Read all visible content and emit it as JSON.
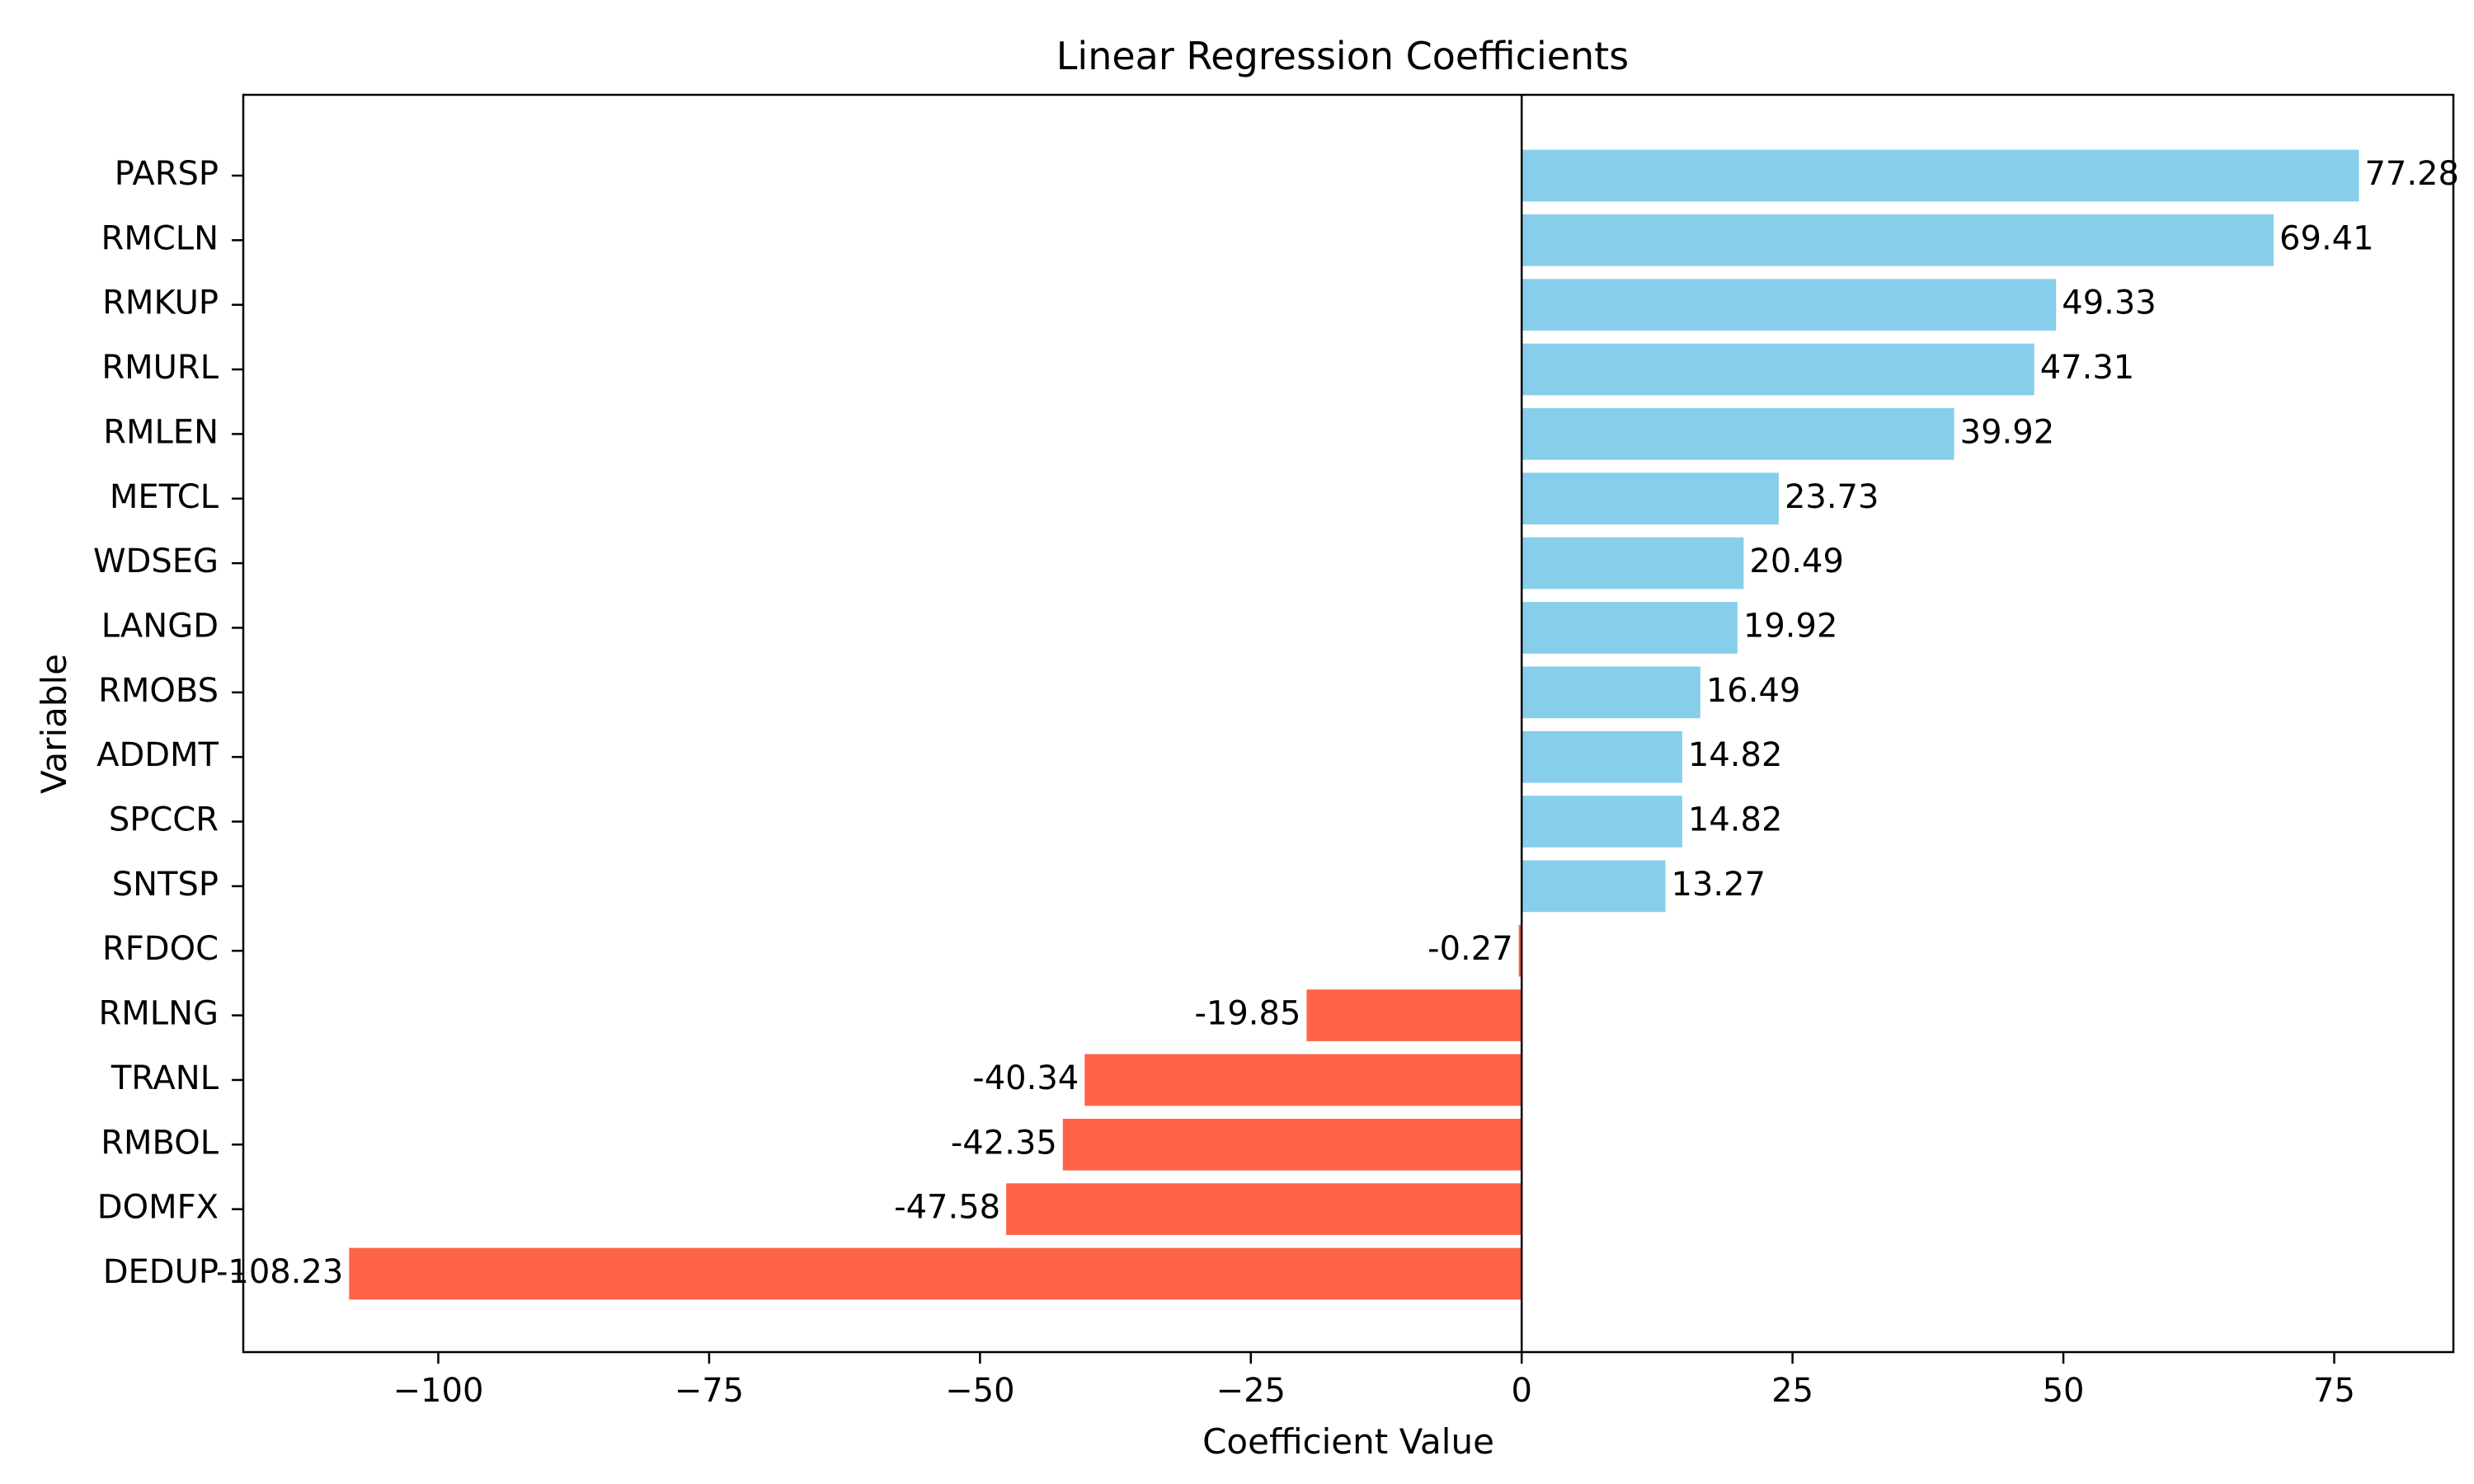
{
  "chart_data": {
    "type": "bar",
    "orientation": "horizontal",
    "title": "Linear Regression Coefficients",
    "xlabel": "Coefficient Value",
    "ylabel": "Variable",
    "xlim": [
      -118,
      86
    ],
    "xticks": [
      -100,
      -75,
      -50,
      -25,
      0,
      25,
      50,
      75
    ],
    "xtick_labels": [
      "−100",
      "−75",
      "−50",
      "−25",
      "0",
      "25",
      "50",
      "75"
    ],
    "grid": false,
    "zero_line": true,
    "colors": {
      "positive": "#87ceeb",
      "negative": "#ff6347"
    },
    "categories": [
      "PARSP",
      "RMCLN",
      "RMKUP",
      "RMURL",
      "RMLEN",
      "METCL",
      "WDSEG",
      "LANGD",
      "RMOBS",
      "ADDMT",
      "SPCCR",
      "SNTSP",
      "RFDOC",
      "RMLNG",
      "TRANL",
      "RMBOL",
      "DOMFX",
      "DEDUP"
    ],
    "values": [
      77.28,
      69.41,
      49.33,
      47.31,
      39.92,
      23.73,
      20.49,
      19.92,
      16.49,
      14.82,
      14.82,
      13.27,
      -0.27,
      -19.85,
      -40.34,
      -42.35,
      -47.58,
      -108.23
    ],
    "value_labels": [
      "77.28",
      "69.41",
      "49.33",
      "47.31",
      "39.92",
      "23.73",
      "20.49",
      "19.92",
      "16.49",
      "14.82",
      "14.82",
      "13.27",
      "-0.27",
      "-19.85",
      "-40.34",
      "-42.35",
      "-47.58",
      "-108.23"
    ]
  }
}
